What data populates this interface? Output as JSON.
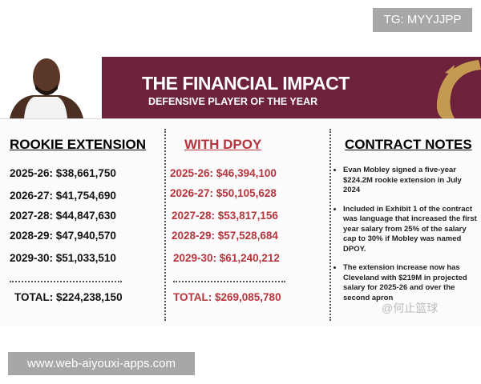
{
  "watermark_top": "TG: MYYJJPP",
  "banner": {
    "title": "THE FINANCIAL IMPACT",
    "subtitle": "DEFENSIVE PLAYER OF THE YEAR",
    "brand_color": "#6d213a",
    "logo_color": "#c49a53"
  },
  "rookie": {
    "heading": "ROOKIE EXTENSION",
    "rows": [
      "2025-26: $38,661,750",
      "2026-27: $41,754,690",
      "2027-28: $44,847,630",
      "2028-29: $47,940,570",
      "2029-30: $51,033,510"
    ],
    "total": "TOTAL: $224,238,150"
  },
  "dpoy": {
    "heading": "WITH DPOY",
    "rows": [
      "2025-26: $46,394,100",
      "2026-27: $50,105,628",
      "2027-28: $53,817,156",
      "2028-29: $57,528,684",
      "2029-30: $61,240,212"
    ],
    "total": "TOTAL: $269,085,780",
    "color": "#b6353d"
  },
  "notes": {
    "heading": "CONTRACT NOTES",
    "items": [
      "Evan Mobley signed a five-year $224.2M rookie extension in July 2024",
      "Included in Exhibit 1 of the contract was language that increased the first year salary from 25% of the salary cap to 30% if Mobley was named DPOY.",
      "The extension increase now has Cleveland with $219M in projected salary for 2025-26 and over the second apron"
    ]
  },
  "watermark_cn": "@何止篮球",
  "watermark_url": "www.web-aiyouxi-apps.com"
}
